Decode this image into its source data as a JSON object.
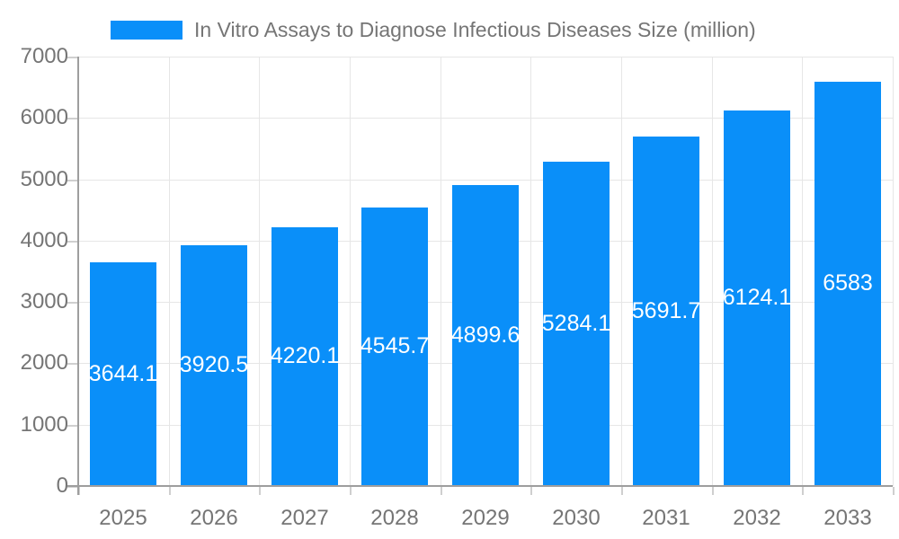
{
  "legend": {
    "label": "In Vitro Assays to Diagnose Infectious Diseases Size (million)"
  },
  "colors": {
    "bar": "#0a8ff9",
    "grid": "#e6e6e6",
    "axis": "#9e9e9e",
    "tick": "#cfcfcf",
    "text": "#757575",
    "value_label": "#ffffff",
    "background": "#ffffff"
  },
  "chart_data": {
    "type": "bar",
    "title": "In Vitro Assays to Diagnose Infectious Diseases Size (million)",
    "series": [
      {
        "name": "In Vitro Assays to Diagnose Infectious Diseases Size (million)",
        "values": [
          3644.1,
          3920.5,
          4220.1,
          4545.7,
          4899.6,
          5284.1,
          5691.7,
          6124.1,
          6583
        ]
      }
    ],
    "categories": [
      "2025",
      "2026",
      "2027",
      "2028",
      "2029",
      "2030",
      "2031",
      "2032",
      "2033"
    ],
    "xlabel": "",
    "ylabel": "",
    "ylim": [
      0,
      7000
    ],
    "y_ticks": [
      0,
      1000,
      2000,
      3000,
      4000,
      5000,
      6000,
      7000
    ],
    "grid": true,
    "legend_position": "top",
    "data_labels": "inside-center-white"
  }
}
